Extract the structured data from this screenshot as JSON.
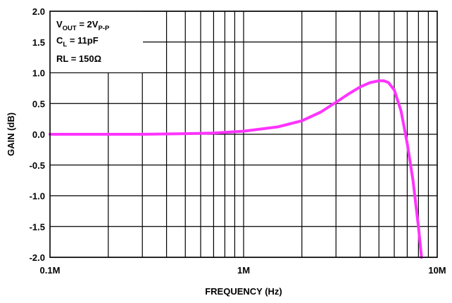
{
  "colors": {
    "curve": "#ff33ff",
    "grid": "#000000",
    "background": "#ffffff"
  },
  "chart_data": {
    "type": "line",
    "title": "",
    "xlabel": "FREQUENCY (Hz)",
    "ylabel": "GAIN (dB)",
    "x_scale": "log",
    "xlim": [
      100000,
      10000000
    ],
    "ylim": [
      -2.0,
      2.0
    ],
    "grid": true,
    "x_tick_labels": [
      "0.1M",
      "1M",
      "10M"
    ],
    "y_tick_labels": [
      "2.0",
      "1.5",
      "1.0",
      "0.5",
      "0.0",
      "-0.5",
      "-1.0",
      "-1.5",
      "-2.0"
    ],
    "annotations": {
      "vout_main": "V",
      "vout_sub": "OUT",
      "vout_value": " = 2V",
      "vout_value_sub": "P-P",
      "cl_main": "C",
      "cl_sub": "L",
      "cl_value": " = 11pF",
      "rl": "RL = 150Ω"
    },
    "series": [
      {
        "x": [
          100000,
          150000,
          200000,
          300000,
          500000,
          700000,
          1000000,
          1500000,
          2000000,
          2500000,
          3000000,
          3500000,
          4000000,
          4500000,
          5000000,
          5300000,
          5600000,
          6000000,
          6500000,
          7000000,
          7500000,
          8000000,
          8300000
        ],
        "values": [
          0.0,
          0.0,
          0.0,
          0.0,
          0.01,
          0.02,
          0.05,
          0.12,
          0.22,
          0.36,
          0.52,
          0.66,
          0.77,
          0.84,
          0.87,
          0.87,
          0.84,
          0.72,
          0.38,
          -0.15,
          -0.75,
          -1.5,
          -2.0
        ]
      }
    ]
  }
}
